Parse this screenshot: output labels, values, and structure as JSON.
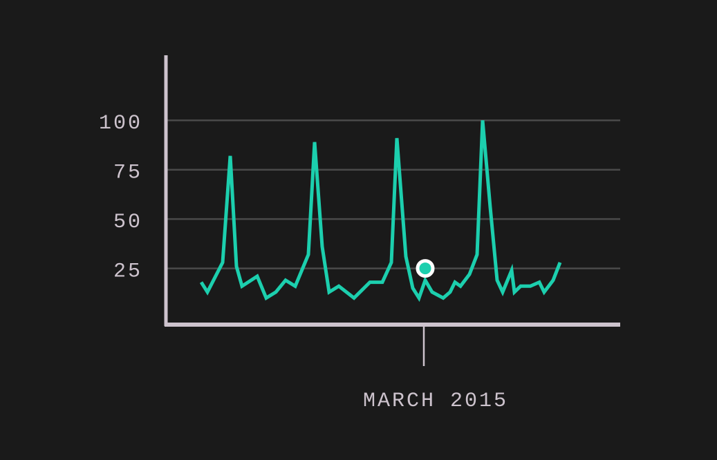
{
  "chart_data": {
    "type": "line",
    "x": [
      51,
      60,
      82,
      93,
      102,
      110,
      132,
      145,
      159,
      173,
      187,
      206,
      215,
      226,
      236,
      250,
      272,
      295,
      313,
      326,
      334,
      347,
      357,
      366,
      375,
      385,
      401,
      411,
      418,
      426,
      439,
      450,
      458,
      469,
      479,
      487,
      500,
      504,
      513,
      527,
      540,
      547,
      560,
      570
    ],
    "series": [
      {
        "color": "#1ccfae",
        "values": [
          18,
          13,
          28,
          82,
          26,
          16,
          21,
          10,
          13,
          19,
          16,
          32,
          89,
          36,
          13,
          16,
          10,
          18,
          18,
          28,
          91,
          31,
          15,
          10,
          19,
          13,
          10,
          13,
          18,
          16,
          22,
          32,
          100,
          56,
          19,
          13,
          24,
          13,
          16,
          16,
          18,
          13,
          19,
          28
        ]
      }
    ],
    "xlim": [
      0,
      657
    ],
    "xticks": [
      {
        "value": 373,
        "label": "MARCH 2015"
      }
    ],
    "ylim": [
      -3.5,
      133
    ],
    "yticks": [
      25,
      50,
      75,
      100
    ],
    "grid": true,
    "highlight": {
      "x": 375,
      "y": 25
    }
  }
}
